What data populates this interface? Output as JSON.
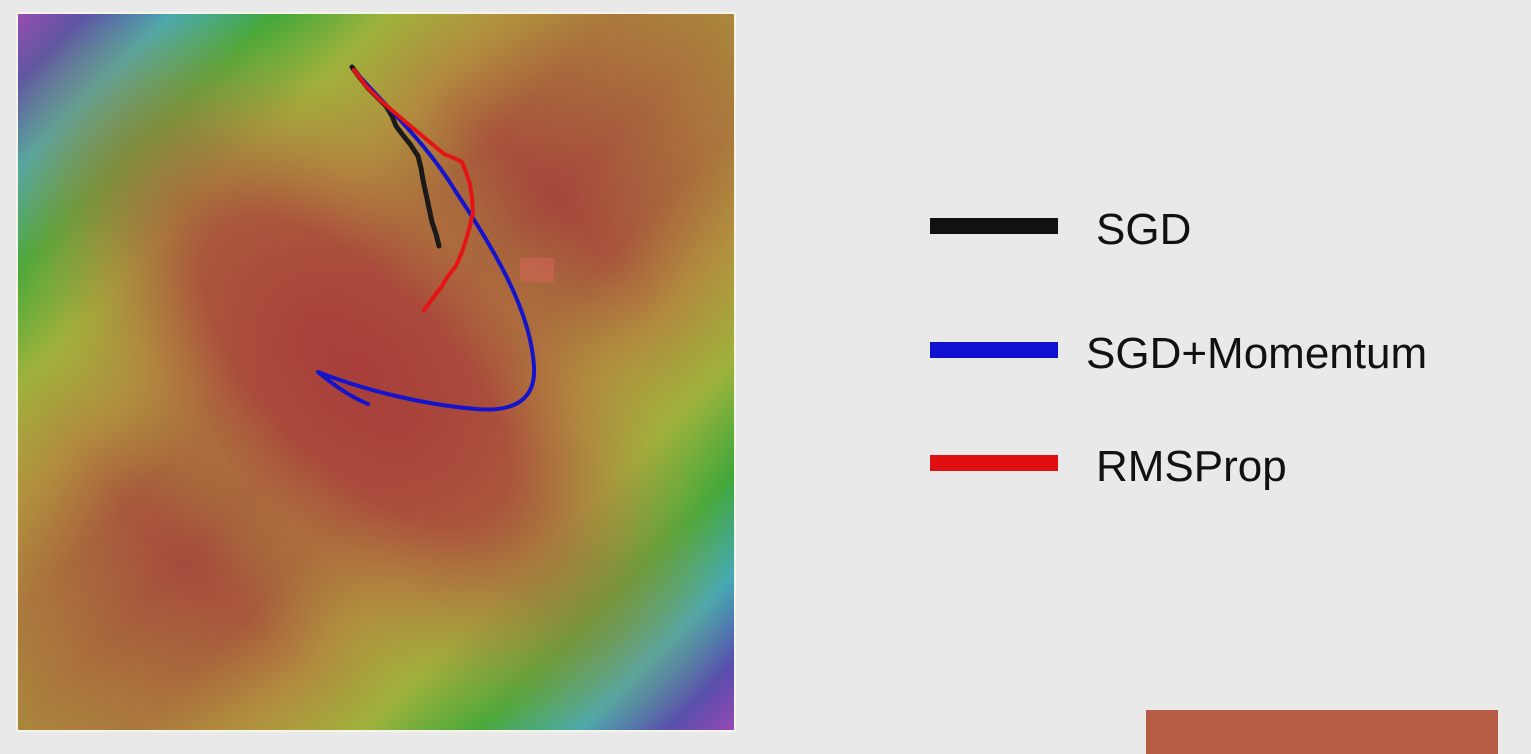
{
  "colors": {
    "background": "#e9e9e9",
    "corner_bar": "#b85c46",
    "marker": "#c4644c"
  },
  "legend": {
    "items": [
      {
        "label": "SGD",
        "color": "#111111"
      },
      {
        "label": "SGD+Momentum",
        "color": "#1010d0"
      },
      {
        "label": "RMSProp",
        "color": "#e01010"
      }
    ]
  },
  "paths": {
    "sgd": {
      "color": "#1a1a1a"
    },
    "momentum": {
      "color": "#1414cc"
    },
    "rmsprop": {
      "color": "#e41414"
    }
  }
}
